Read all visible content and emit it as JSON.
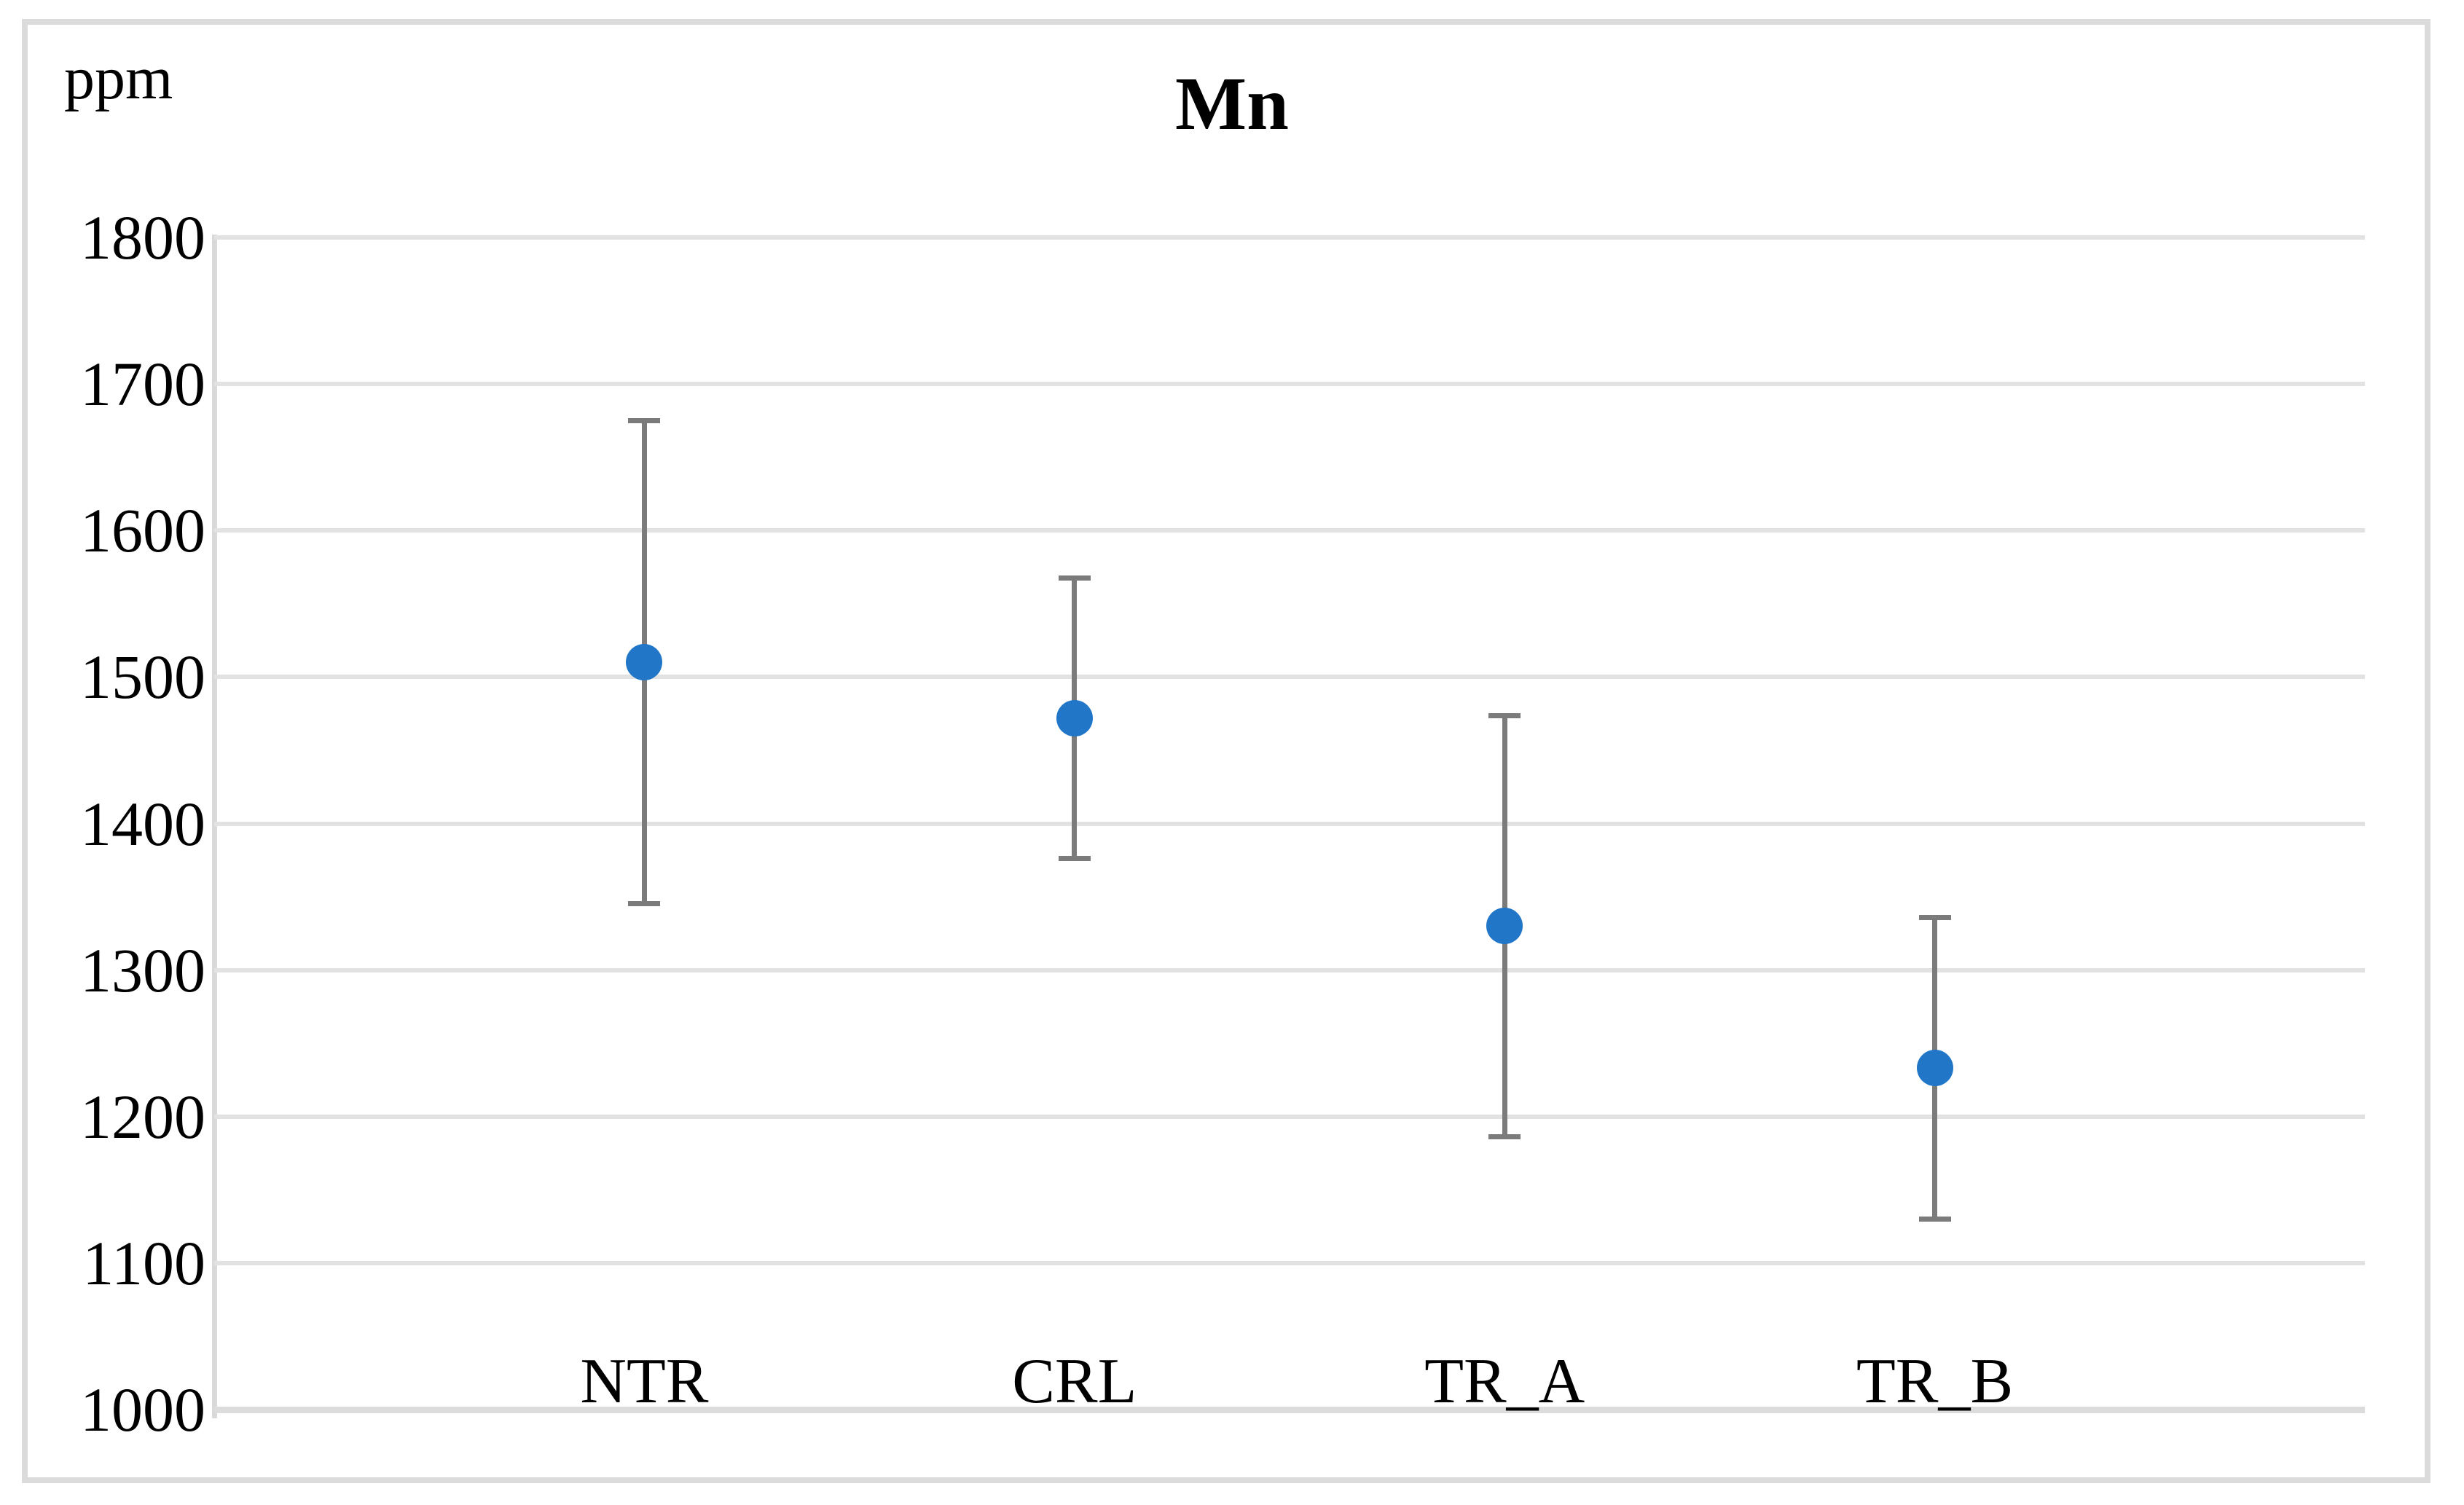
{
  "chart_data": {
    "type": "scatter",
    "title": "Mn",
    "ylabel": "ppm",
    "xlabel": "",
    "categories": [
      "NTR",
      "CRL",
      "TR_A",
      "TR_B"
    ],
    "series": [
      {
        "name": "Mn",
        "means": [
          1510,
          1472,
          1330,
          1233
        ],
        "errors": [
          165,
          96,
          144,
          103
        ],
        "upper": [
          1675,
          1568,
          1474,
          1336
        ],
        "lower": [
          1345,
          1376,
          1186,
          1130
        ]
      }
    ],
    "x_positions": [
      1,
      2,
      3,
      4
    ],
    "xlim": [
      0,
      5
    ],
    "ylim": [
      1000,
      1800
    ],
    "yticks": [
      1800,
      1700,
      1600,
      1500,
      1400,
      1300,
      1200,
      1100,
      1000
    ],
    "ytick_step": 100,
    "grid": true,
    "legend": "none",
    "marker_shape": "circle"
  },
  "colors": {
    "marker": "#2176c8",
    "error_bar": "#7b7b7b",
    "gridline": "#e2e2e2",
    "axis_line": "#dcdcdc",
    "plot_border": "#d9d9d9",
    "outer_border": "#dbdbdb",
    "text": "#000000",
    "background": "#ffffff"
  }
}
